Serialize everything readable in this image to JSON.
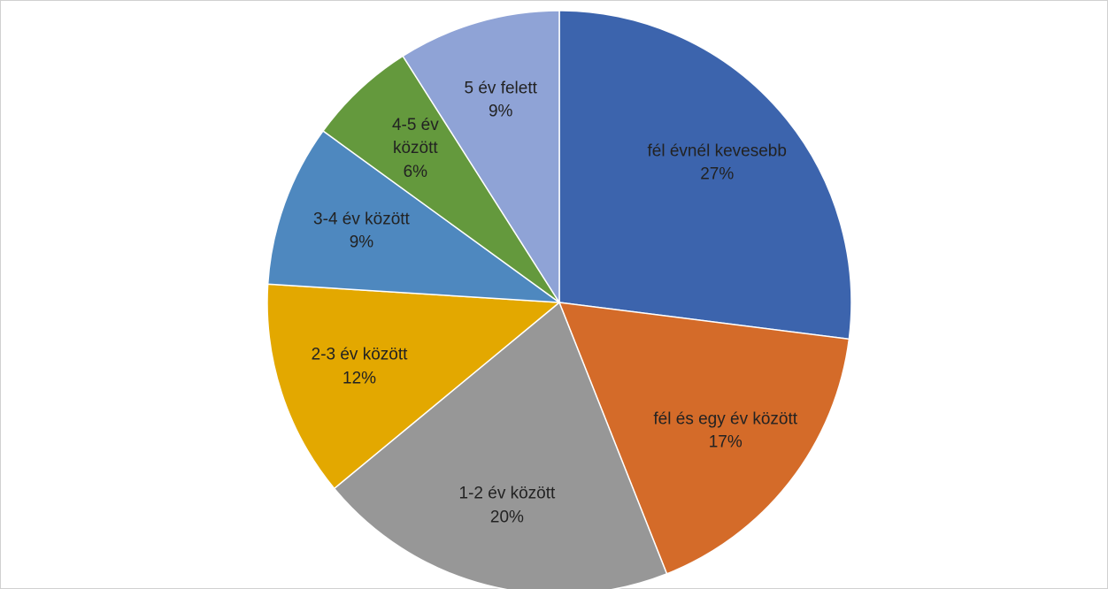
{
  "chart_data": {
    "type": "pie",
    "categories": [
      "fél évnél kevesebb",
      "fél és egy év között",
      "1-2 év között",
      "2-3 év között",
      "3-4 év között",
      "4-5 év között",
      "5 év felett"
    ],
    "values": [
      27,
      17,
      20,
      12,
      9,
      6,
      9
    ],
    "value_labels": [
      "27%",
      "17%",
      "20%",
      "12%",
      "9%",
      "6%",
      "9%"
    ],
    "colors": [
      "#3c64ad",
      "#d46b29",
      "#979797",
      "#e3a800",
      "#4e88bf",
      "#64993d",
      "#8fa3d6"
    ]
  }
}
